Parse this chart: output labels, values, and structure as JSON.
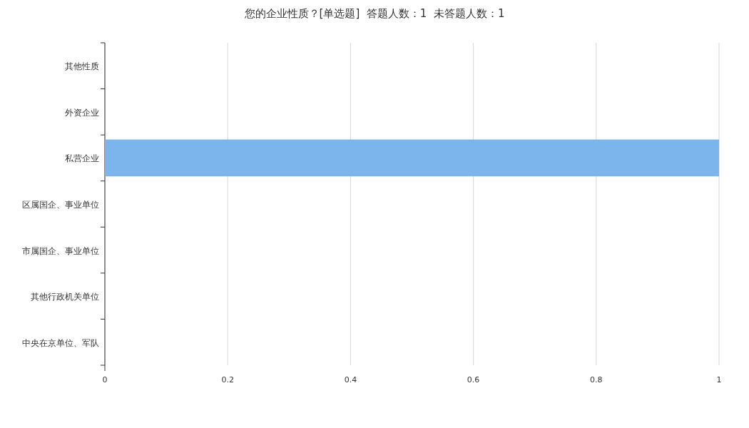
{
  "chart_data": {
    "type": "bar",
    "orientation": "horizontal",
    "title": "您的企业性质？[单选题]  答题人数：1  未答题人数：1",
    "categories": [
      "其他性质",
      "外资企业",
      "私营企业",
      "区属国企、事业单位",
      "市属国企、事业单位",
      "其他行政机关单位",
      "中央在京单位、军队"
    ],
    "values": [
      0,
      0,
      1,
      0,
      0,
      0,
      0
    ],
    "color": "#7cb5ec",
    "xlim": [
      0,
      1
    ],
    "xticks": [
      0,
      0.2,
      0.4,
      0.6,
      0.8,
      1
    ],
    "grid": "x"
  }
}
